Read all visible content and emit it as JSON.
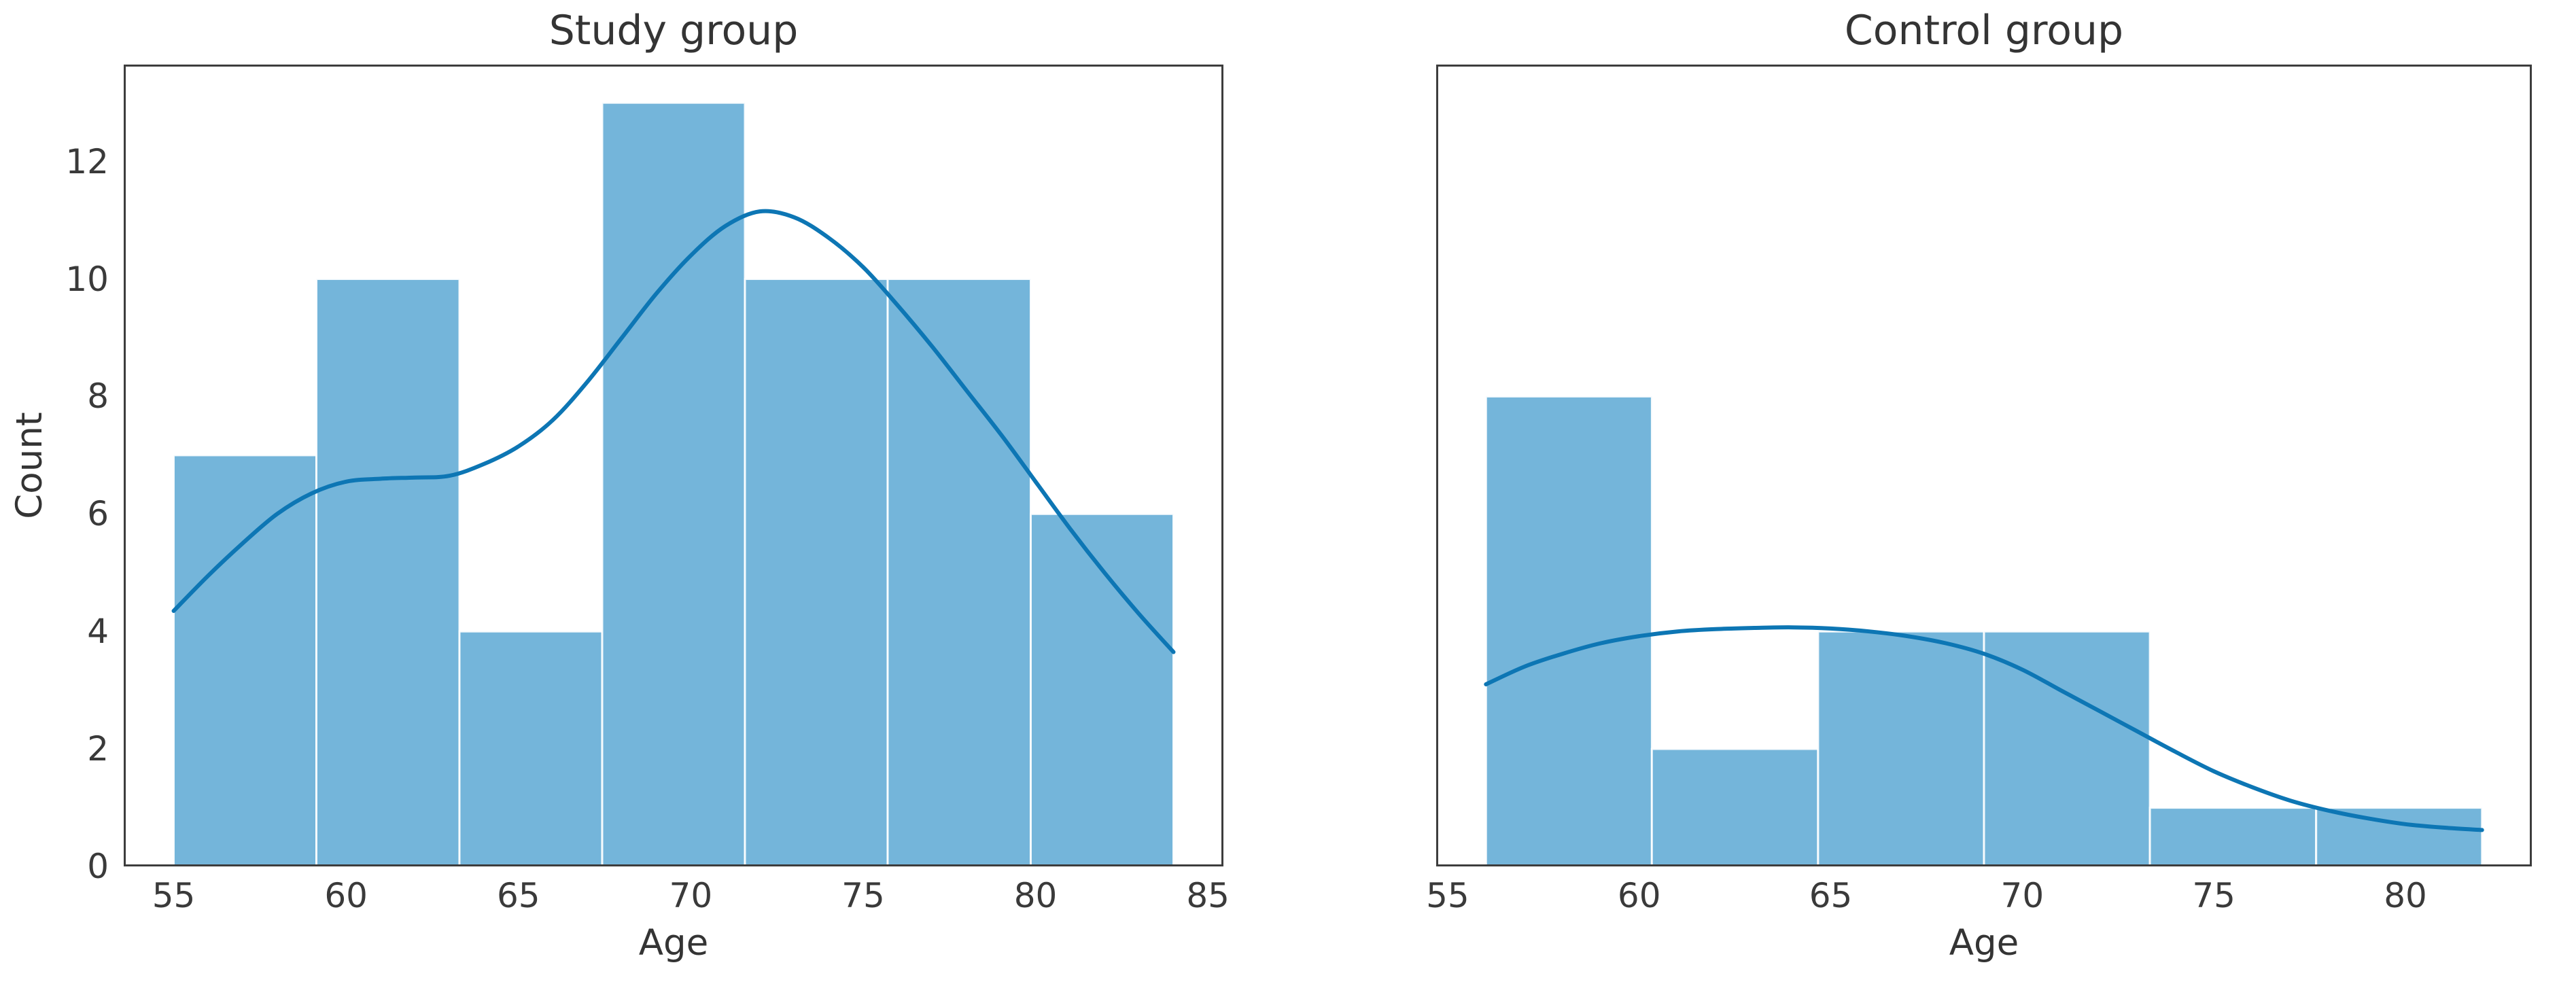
{
  "figure": {
    "background": "#ffffff",
    "colors": {
      "bar_fill": "#74b5da",
      "bar_edge": "#ffffff",
      "kde_line": "#0d76b4",
      "spine": "#3d3d3d",
      "text": "#3a3a3a"
    }
  },
  "chart_data": [
    {
      "type": "bar",
      "subtype": "histogram_with_kde",
      "title": "Study group",
      "xlabel": "Age",
      "ylabel": "Count",
      "bin_edges": [
        55,
        59.14,
        63.29,
        67.43,
        71.57,
        75.71,
        79.86,
        84
      ],
      "counts": [
        7,
        10,
        4,
        13,
        10,
        10,
        6
      ],
      "kde_x": [
        55,
        56,
        57,
        58,
        59,
        60,
        61,
        62,
        63,
        64,
        65,
        66,
        67,
        68,
        69,
        70,
        71,
        72,
        73,
        74,
        75,
        76,
        77,
        78,
        79,
        80,
        81,
        82,
        83,
        84
      ],
      "kde_y": [
        4.35,
        4.95,
        5.5,
        6.0,
        6.35,
        6.55,
        6.6,
        6.62,
        6.65,
        6.85,
        7.15,
        7.6,
        8.25,
        9.0,
        9.75,
        10.4,
        10.9,
        11.15,
        11.05,
        10.7,
        10.2,
        9.55,
        8.85,
        8.1,
        7.35,
        6.55,
        5.75,
        5.0,
        4.3,
        3.65
      ],
      "xticks": [
        55,
        60,
        65,
        70,
        75,
        80,
        85
      ],
      "yticks": [
        0,
        2,
        4,
        6,
        8,
        10,
        12
      ],
      "xlim": [
        53.55,
        85.45
      ],
      "ylim": [
        0,
        13.65
      ],
      "grid": false,
      "legend": null
    },
    {
      "type": "bar",
      "subtype": "histogram_with_kde",
      "title": "Control group",
      "xlabel": "Age",
      "ylabel": "",
      "bin_edges": [
        56,
        60.33,
        64.67,
        69,
        73.33,
        77.67,
        82
      ],
      "counts": [
        8,
        2,
        4,
        4,
        1,
        1
      ],
      "kde_x": [
        56,
        57,
        58,
        59,
        60,
        61,
        62,
        63,
        64,
        65,
        66,
        67,
        68,
        69,
        70,
        71,
        72,
        73,
        74,
        75,
        76,
        77,
        78,
        79,
        80,
        81,
        82
      ],
      "kde_y": [
        3.1,
        3.4,
        3.62,
        3.8,
        3.92,
        4.0,
        4.04,
        4.06,
        4.07,
        4.05,
        4.0,
        3.92,
        3.8,
        3.62,
        3.35,
        3.0,
        2.65,
        2.3,
        1.95,
        1.62,
        1.35,
        1.12,
        0.95,
        0.82,
        0.72,
        0.66,
        0.62
      ],
      "xticks": [
        55,
        60,
        65,
        70,
        75,
        80
      ],
      "yticks": [],
      "xlim": [
        54.7,
        83.3
      ],
      "ylim": [
        0,
        13.65
      ],
      "grid": false,
      "legend": null
    }
  ]
}
